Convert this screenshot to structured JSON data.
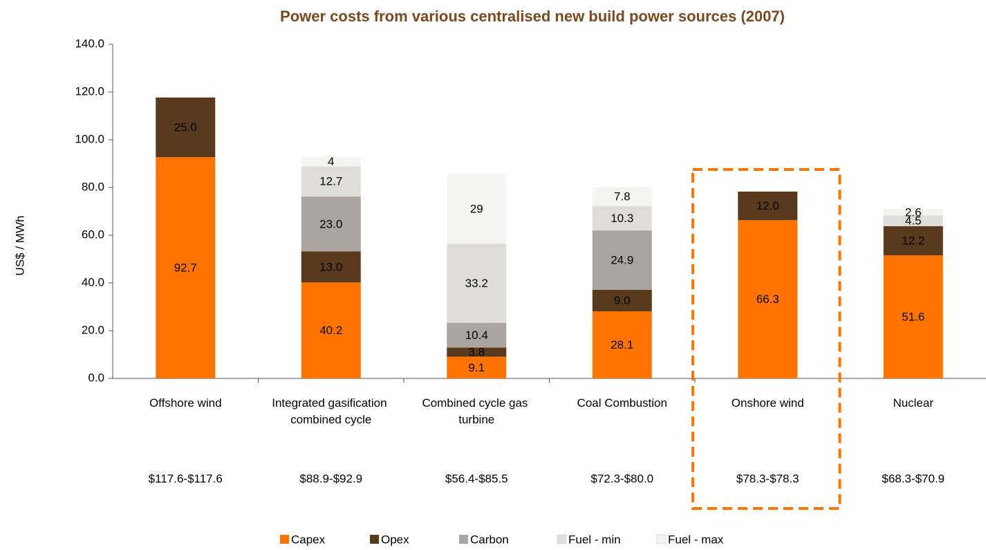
{
  "chart_data": {
    "type": "stacked_bar",
    "title": "Power costs from various centralised new build power sources (2007)",
    "y_label": "US$ / MWh",
    "categories": [
      "Offshore wind",
      "Integrated gasification combined cycle",
      "Combined cycle gas turbine",
      "Coal Combustion",
      "Onshore wind",
      "Nuclear"
    ],
    "range_labels": [
      "$117.6-$117.6",
      "$88.9-$92.9",
      "$56.4-$85.5",
      "$72.3-$80.0",
      "$78.3-$78.3",
      "$68.3-$70.9"
    ],
    "series": [
      {
        "name": "Capex",
        "color": "#ff7300",
        "values": [
          92.7,
          40.2,
          9.1,
          28.1,
          66.3,
          51.6
        ]
      },
      {
        "name": "Opex",
        "color": "#5a3a1c",
        "values": [
          25.0,
          13.0,
          3.8,
          9.0,
          12.0,
          12.2
        ],
        "value_labels": [
          "25.0",
          "13.0",
          "3.8",
          "9.0",
          "12.0",
          "12.2"
        ]
      },
      {
        "name": "Carbon",
        "color": "#aca59f",
        "values": [
          null,
          23.0,
          10.4,
          24.9,
          null,
          null
        ],
        "value_labels": [
          null,
          "23.0",
          "10.4",
          "24.9",
          null,
          null
        ]
      },
      {
        "name": "Fuel - min",
        "color": "#deddd9",
        "values": [
          null,
          12.7,
          33.2,
          10.3,
          null,
          4.5
        ]
      },
      {
        "name": "Fuel - max",
        "color": "#f4f4f3",
        "values": [
          null,
          4.0,
          29.0,
          7.8,
          null,
          2.6
        ]
      }
    ],
    "ylim": [
      0,
      140
    ],
    "yticks": [
      {
        "value": 0,
        "label": "0.0"
      },
      {
        "value": 20,
        "label": "20.0"
      },
      {
        "value": 40,
        "label": "40.0"
      },
      {
        "value": 60,
        "label": "60.0"
      },
      {
        "value": 80,
        "label": "80.0"
      },
      {
        "value": 100,
        "label": "100.0"
      },
      {
        "value": 120,
        "label": "120.0"
      },
      {
        "value": 140,
        "label": "140.0"
      }
    ]
  }
}
